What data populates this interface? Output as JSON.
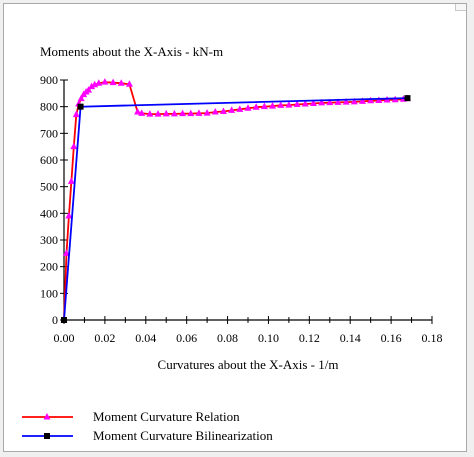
{
  "chart_data": {
    "type": "line",
    "title": "Moments about the X-Axis - kN-m",
    "xlabel": "Curvatures about the X-Axis - 1/m",
    "ylabel": "",
    "xlim": [
      0,
      0.18
    ],
    "ylim": [
      0,
      900
    ],
    "x_ticks": [
      "0.00",
      "0.02",
      "0.04",
      "0.06",
      "0.08",
      "0.10",
      "0.12",
      "0.14",
      "0.16",
      "0.18"
    ],
    "y_ticks": [
      "0",
      "100",
      "200",
      "300",
      "400",
      "500",
      "600",
      "700",
      "800",
      "900"
    ],
    "x_tick_values": [
      0,
      0.02,
      0.04,
      0.06,
      0.08,
      0.1,
      0.12,
      0.14,
      0.16,
      0.18
    ],
    "y_tick_values": [
      0,
      100,
      200,
      300,
      400,
      500,
      600,
      700,
      800,
      900
    ],
    "grid": false,
    "legend_position": "bottom-left",
    "series": [
      {
        "name": "Moment Curvature Relation",
        "color": "#ff00ff",
        "line_color": "#ff0000",
        "marker": "triangle",
        "x": [
          0.0,
          0.0012,
          0.0024,
          0.0036,
          0.0048,
          0.006,
          0.0072,
          0.0084,
          0.0096,
          0.0108,
          0.012,
          0.0135,
          0.015,
          0.017,
          0.02,
          0.024,
          0.028,
          0.032,
          0.036,
          0.038,
          0.042,
          0.046,
          0.05,
          0.054,
          0.058,
          0.062,
          0.066,
          0.07,
          0.074,
          0.078,
          0.082,
          0.086,
          0.09,
          0.094,
          0.098,
          0.102,
          0.106,
          0.11,
          0.114,
          0.118,
          0.122,
          0.126,
          0.13,
          0.134,
          0.138,
          0.142,
          0.146,
          0.15,
          0.154,
          0.158,
          0.162,
          0.166,
          0.168
        ],
        "y": [
          0,
          250,
          390,
          520,
          650,
          770,
          810,
          830,
          845,
          855,
          862,
          875,
          882,
          888,
          892,
          890,
          888,
          884,
          780,
          775,
          772,
          772,
          773,
          773,
          774,
          774,
          775,
          776,
          780,
          782,
          786,
          790,
          794,
          798,
          800,
          802,
          805,
          806,
          808,
          810,
          812,
          814,
          815,
          816,
          817,
          818,
          820,
          822,
          823,
          825,
          826,
          828,
          830
        ]
      },
      {
        "name": "Moment Curvature Bilinearization",
        "color": "#0000ff",
        "line_color": "#0000ff",
        "marker": "square",
        "x": [
          0.0,
          0.0081,
          0.168
        ],
        "y": [
          0,
          800,
          832
        ]
      }
    ]
  }
}
